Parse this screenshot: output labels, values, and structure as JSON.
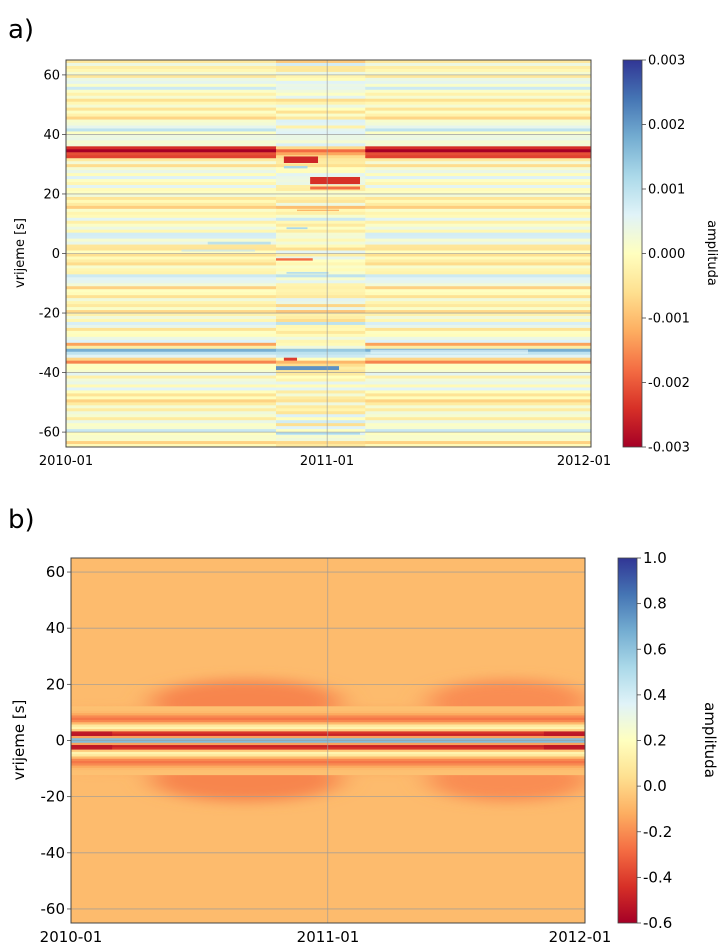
{
  "chart_data": [
    {
      "panel_label": "a)",
      "type": "heatmap",
      "x_ticks": [
        "2010-01",
        "2011-01",
        "2012-01"
      ],
      "ylabel": "vrijeme [s]",
      "ylim": [
        -65,
        65
      ],
      "y_ticks": [
        "60",
        "40",
        "20",
        "0",
        "-20",
        "-40",
        "-60"
      ],
      "y_tick_values": [
        60,
        40,
        20,
        0,
        -20,
        -40,
        -60
      ],
      "colorbar": {
        "label": "amplituda",
        "range": [
          -0.003,
          0.003
        ],
        "ticks": [
          "0.003",
          "0.002",
          "0.001",
          "0.000",
          "-0.001",
          "-0.002",
          "-0.003"
        ],
        "tick_values": [
          0.003,
          0.002,
          0.001,
          0.0,
          -0.001,
          -0.002,
          -0.003
        ]
      },
      "colormap": "RdYlBu",
      "grid": true
    },
    {
      "panel_label": "b)",
      "type": "heatmap",
      "x_ticks": [
        "2010-01",
        "2011-01",
        "2012-01"
      ],
      "ylabel": "vrijeme [s]",
      "ylim": [
        -65,
        65
      ],
      "y_ticks": [
        "60",
        "40",
        "20",
        "0",
        "-20",
        "-40",
        "-60"
      ],
      "y_tick_values": [
        60,
        40,
        20,
        0,
        -20,
        -40,
        -60
      ],
      "colorbar": {
        "label": "amplituda",
        "range": [
          -0.6,
          1.0
        ],
        "ticks": [
          "1.0",
          "0.8",
          "0.6",
          "0.4",
          "0.2",
          "0.0",
          "-0.2",
          "-0.4",
          "-0.6"
        ],
        "tick_values": [
          1.0,
          0.8,
          0.6,
          0.4,
          0.2,
          0.0,
          -0.2,
          -0.4,
          -0.6
        ]
      },
      "colormap": "RdYlBu",
      "grid": true
    }
  ]
}
